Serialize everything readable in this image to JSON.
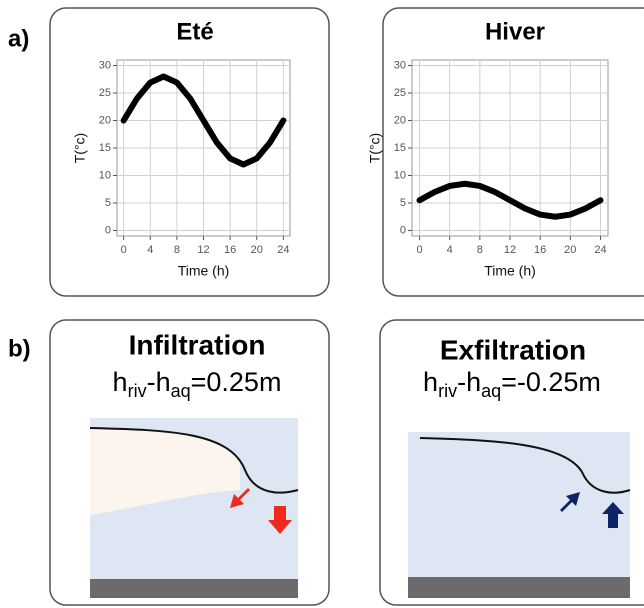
{
  "panel_labels": [
    "a)",
    "b)"
  ],
  "chart_data": [
    {
      "type": "line",
      "title": "Eté",
      "xlabel": "Time (h)",
      "ylabel": "T(°c)",
      "x": [
        0,
        2,
        4,
        6,
        8,
        10,
        12,
        14,
        16,
        18,
        20,
        22,
        24
      ],
      "values": [
        20,
        24,
        26.9,
        28,
        26.9,
        24,
        20,
        16,
        13.1,
        12,
        13.1,
        16,
        20
      ],
      "color": "#000000",
      "xlim": [
        -1,
        25
      ],
      "ylim": [
        -1,
        31
      ],
      "xticks": [
        0,
        4,
        8,
        12,
        16,
        20,
        24
      ],
      "yticks": [
        0,
        5,
        10,
        15,
        20,
        25,
        30
      ],
      "grid": true
    },
    {
      "type": "line",
      "title": "Hiver",
      "xlabel": "Time (h)",
      "ylabel": "T(°c)",
      "x": [
        0,
        2,
        4,
        6,
        8,
        10,
        12,
        14,
        16,
        18,
        20,
        22,
        24
      ],
      "values": [
        5.5,
        7,
        8.1,
        8.5,
        8.1,
        7,
        5.5,
        4,
        2.9,
        2.5,
        2.9,
        4,
        5.5
      ],
      "color": "#000000",
      "xlim": [
        -1,
        25
      ],
      "ylim": [
        -1,
        31
      ],
      "xticks": [
        0,
        4,
        8,
        12,
        16,
        20,
        24
      ],
      "yticks": [
        0,
        5,
        10,
        15,
        20,
        25,
        30
      ],
      "grid": true
    }
  ],
  "diagrams": [
    {
      "title": "Infiltration",
      "formula": {
        "h1": "h",
        "sub1": "riv",
        "mid": "-h",
        "sub2": "aq",
        "rest": "=0.25m"
      }
    },
    {
      "title": "Exfiltration",
      "formula": {
        "h1": "h",
        "sub1": "riv",
        "mid": "-h",
        "sub2": "aq",
        "rest": "=-0.25m"
      }
    }
  ]
}
